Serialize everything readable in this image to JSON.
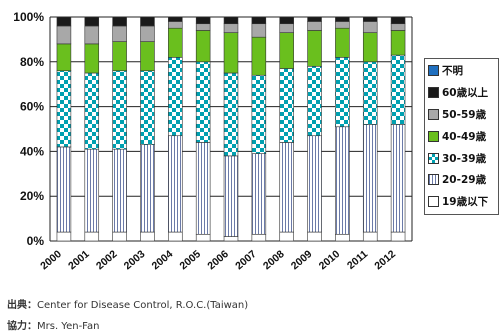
{
  "chart_data": {
    "type": "bar",
    "stacked": true,
    "percent": true,
    "title": "",
    "xlabel": "",
    "ylabel": "",
    "ylim": [
      0,
      100
    ],
    "yticks": [
      "0%",
      "20%",
      "40%",
      "60%",
      "80%",
      "100%"
    ],
    "categories": [
      "2000",
      "2001",
      "2002",
      "2003",
      "2004",
      "2005",
      "2006",
      "2007",
      "2008",
      "2009",
      "2010",
      "2011",
      "2012"
    ],
    "series": [
      {
        "name": "19歳以下",
        "color": "#ffffff",
        "pattern": "plain",
        "values": [
          4,
          4,
          4,
          4,
          4,
          3,
          2,
          3,
          4,
          4,
          3,
          4,
          4
        ]
      },
      {
        "name": "20-29歳",
        "color": "#ffffff",
        "pattern": "vertical-lines",
        "values": [
          38,
          37,
          37,
          39,
          43,
          41,
          36,
          36,
          40,
          43,
          48,
          48,
          48
        ]
      },
      {
        "name": "30-39歳",
        "color": "#00a0b0",
        "pattern": "checker",
        "values": [
          34,
          34,
          35,
          33,
          35,
          36,
          37,
          35,
          33,
          31,
          31,
          28,
          31
        ]
      },
      {
        "name": "40-49歳",
        "color": "#6abf1e",
        "pattern": "solid",
        "values": [
          12,
          13,
          13,
          13,
          13,
          14,
          18,
          17,
          16,
          16,
          13,
          13,
          11
        ]
      },
      {
        "name": "50-59歳",
        "color": "#a8a8a8",
        "pattern": "solid",
        "values": [
          8,
          8,
          7,
          7,
          3,
          3,
          4,
          6,
          4,
          4,
          3,
          5,
          3
        ]
      },
      {
        "name": "60歳以上",
        "color": "#1a1a1a",
        "pattern": "solid",
        "values": [
          4,
          4,
          4,
          4,
          2,
          3,
          3,
          3,
          3,
          2,
          2,
          2,
          3
        ]
      },
      {
        "name": "不明",
        "color": "#1f6fbf",
        "pattern": "solid",
        "values": [
          0,
          0,
          0,
          0,
          0,
          0,
          0,
          0,
          0,
          0,
          0,
          0,
          0
        ]
      }
    ],
    "legend_position": "right",
    "grid": true
  },
  "footer": {
    "source_label": "出典：",
    "source_text": "Center for Disease Control, R.O.C.(Taiwan)",
    "cooperation_label": "協力：",
    "cooperation_text": "Mrs. Yen-Fan"
  }
}
